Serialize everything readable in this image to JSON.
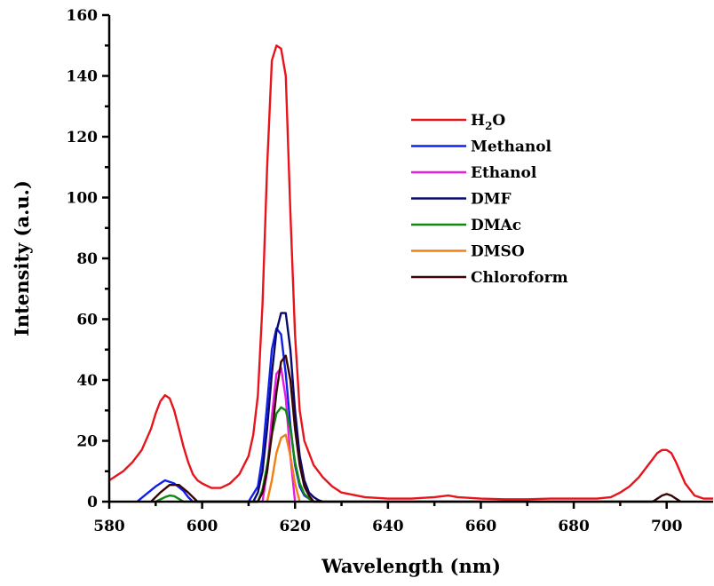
{
  "chart_data": {
    "type": "line",
    "xlabel": "Wavelength (nm)",
    "ylabel": "Intensity (a.u.)",
    "xlim": [
      580,
      710
    ],
    "ylim": [
      0,
      160
    ],
    "x_ticks": [
      580,
      600,
      620,
      640,
      660,
      680,
      700
    ],
    "y_ticks": [
      0,
      20,
      40,
      60,
      80,
      100,
      120,
      140,
      160
    ],
    "grid": false,
    "legend_position": "upper-right",
    "series": [
      {
        "name": "H2O",
        "legend_main": "H",
        "legend_sub": "2",
        "legend_tail": "O",
        "color": "#e8141c",
        "x": [
          580,
          583,
          585,
          587,
          589,
          590,
          591,
          592,
          593,
          594,
          595,
          596,
          597,
          598,
          599,
          600,
          602,
          604,
          606,
          608,
          610,
          611,
          612,
          613,
          614,
          615,
          616,
          617,
          618,
          619,
          620,
          621,
          622,
          624,
          626,
          628,
          630,
          635,
          640,
          645,
          650,
          653,
          655,
          660,
          665,
          670,
          675,
          680,
          685,
          688,
          690,
          692,
          694,
          696,
          698,
          699,
          700,
          701,
          702,
          704,
          706,
          708,
          710
        ],
        "y": [
          7,
          10,
          13,
          17,
          24,
          29,
          33,
          35,
          34,
          30,
          24,
          18,
          13,
          9,
          7,
          6,
          4.5,
          4.5,
          6,
          9,
          15,
          22,
          35,
          65,
          110,
          145,
          150,
          149,
          140,
          95,
          55,
          30,
          20,
          12,
          8,
          5,
          3,
          1.5,
          1,
          1,
          1.5,
          2,
          1.5,
          1,
          0.8,
          0.8,
          1,
          1,
          1,
          1.5,
          3,
          5,
          8,
          12,
          16,
          17,
          17,
          16,
          13,
          6,
          2,
          1,
          1
        ]
      },
      {
        "name": "Methanol",
        "color": "#1020e8",
        "x": [
          586,
          588,
          590,
          592,
          594,
          596,
          597,
          598,
          610,
          612,
          613,
          614,
          615,
          616,
          617,
          618,
          619,
          620,
          621,
          622,
          624
        ],
        "y": [
          0,
          2.5,
          5,
          7,
          6,
          3.5,
          1.5,
          0,
          0,
          5,
          15,
          32,
          50,
          57,
          55,
          42,
          25,
          12,
          5,
          2,
          0
        ]
      },
      {
        "name": "Ethanol",
        "color": "#e81ce0",
        "x": [
          613,
          614,
          615,
          616,
          617,
          618,
          619,
          620
        ],
        "y": [
          0,
          10,
          28,
          42,
          44,
          34,
          15,
          0
        ]
      },
      {
        "name": "DMF",
        "color": "#0a0a6e",
        "x": [
          611,
          612,
          613,
          614,
          615,
          616,
          617,
          618,
          619,
          620,
          621,
          622,
          623,
          624,
          625,
          626
        ],
        "y": [
          0,
          3,
          10,
          24,
          42,
          56,
          62,
          62,
          50,
          30,
          15,
          7,
          3,
          1.5,
          0.5,
          0
        ]
      },
      {
        "name": "DMAc",
        "color": "#0d8a10",
        "x": [
          590,
          592,
          593,
          594,
          596,
          612,
          613,
          614,
          615,
          616,
          617,
          618,
          619,
          620,
          621,
          622,
          623,
          624
        ],
        "y": [
          0,
          1.5,
          2,
          1.8,
          0,
          0,
          4,
          12,
          22,
          29,
          31,
          30,
          24,
          13,
          6,
          2.5,
          1,
          0
        ]
      },
      {
        "name": "DMSO",
        "color": "#f08010",
        "x": [
          614,
          615,
          616,
          617,
          618,
          619,
          620,
          621
        ],
        "y": [
          0,
          7,
          16,
          21,
          22,
          15,
          6,
          0
        ]
      },
      {
        "name": "Chloroform",
        "color": "#3a0404",
        "x": [
          589,
          591,
          593,
          595,
          597,
          599,
          612,
          613,
          614,
          615,
          616,
          617,
          618,
          619,
          620,
          621,
          622,
          623,
          624,
          697,
          699,
          700,
          701,
          703
        ],
        "y": [
          0,
          3,
          5.5,
          5.5,
          3,
          0,
          0,
          3,
          10,
          22,
          36,
          46,
          48,
          40,
          24,
          12,
          5,
          2,
          0,
          0,
          2,
          2.5,
          2,
          0
        ]
      }
    ]
  }
}
